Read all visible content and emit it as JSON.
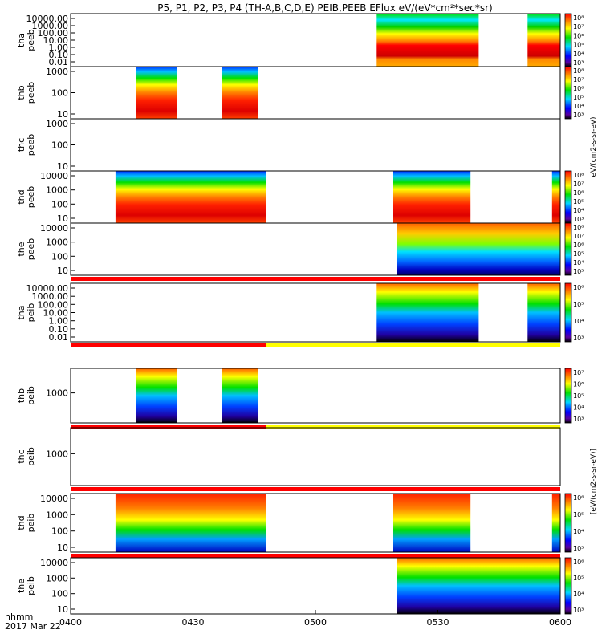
{
  "chart_data": {
    "type": "heatmap",
    "title": "P5, P1, P2, P3, P4 (TH-A,B,C,D,E) PEIB,PEEB EFlux eV/(eV*cm²*sec*sr)",
    "x_axis": {
      "ticks": [
        "0400",
        "0430",
        "0500",
        "0530",
        "0600"
      ],
      "range": [
        "04:00",
        "06:00"
      ],
      "label": "hhmm",
      "date": "2017 Mar 22"
    },
    "colorbar_label_peeb": "eV/(cm2-s-sr-eV)",
    "colorbar_label_peib": "[eV/(cm2-s-sr-eV)]",
    "panels": [
      {
        "probe": "tha",
        "species": "peeb",
        "scale": "log",
        "y_ticks": [
          "10000.00",
          "1000.00",
          "100.00",
          "10.00",
          "1.00",
          "0.10",
          "0.01"
        ],
        "colorbar_ticks": [
          "10⁸",
          "10⁷",
          "10⁶",
          "10⁵",
          "10⁴",
          "10³"
        ],
        "intervals": [
          [
            "05:15",
            "05:40"
          ],
          [
            "05:52",
            "06:00"
          ]
        ],
        "style": "ee_stripes",
        "flag_bar": false
      },
      {
        "probe": "thb",
        "species": "peeb",
        "scale": "log",
        "y_ticks": [
          "1000",
          "100",
          "10"
        ],
        "colorbar_ticks": [
          "10⁸",
          "10⁷",
          "10⁶",
          "10⁵",
          "10⁴",
          "10³"
        ],
        "intervals": [
          [
            "04:16",
            "04:26"
          ],
          [
            "04:37",
            "04:46"
          ]
        ],
        "style": "ee_red",
        "flag_bar": false
      },
      {
        "probe": "thc",
        "species": "peeb",
        "scale": "log",
        "y_ticks": [
          "1000",
          "100",
          "10"
        ],
        "colorbar_ticks": [],
        "intervals": [],
        "style": "none",
        "flag_bar": false
      },
      {
        "probe": "thd",
        "species": "peeb",
        "scale": "log",
        "y_ticks": [
          "10000",
          "1000",
          "100",
          "10"
        ],
        "colorbar_ticks": [
          "10⁸",
          "10⁷",
          "10⁶",
          "10⁵",
          "10⁴",
          "10³"
        ],
        "intervals": [
          [
            "04:11",
            "04:48"
          ],
          [
            "05:19",
            "05:38"
          ],
          [
            "05:58",
            "06:00"
          ]
        ],
        "style": "ee_red",
        "flag_bar": false
      },
      {
        "probe": "the",
        "species": "peeb",
        "scale": "log",
        "y_ticks": [
          "10000",
          "1000",
          "100",
          "10"
        ],
        "colorbar_ticks": [
          "10⁸",
          "10⁷",
          "10⁶",
          "10⁵",
          "10⁴",
          "10³"
        ],
        "intervals": [
          [
            "05:20",
            "06:00"
          ]
        ],
        "style": "ee_mixed",
        "flag_bar": true,
        "flag_segments": [
          {
            "from": "04:00",
            "to": "06:00",
            "color": "#ff0000"
          }
        ]
      },
      {
        "probe": "tha",
        "species": "peib",
        "scale": "log",
        "y_ticks": [
          "10000.00",
          "1000.00",
          "100.00",
          "10.00",
          "1.00",
          "0.10",
          "0.01"
        ],
        "colorbar_ticks": [
          "10⁶",
          "10⁵",
          "10⁴",
          "10³"
        ],
        "intervals": [
          [
            "05:15",
            "05:40"
          ],
          [
            "05:52",
            "06:00"
          ]
        ],
        "style": "ei_mixed",
        "flag_bar": true,
        "flag_segments": [
          {
            "from": "04:00",
            "to": "04:48",
            "color": "#ff0000"
          },
          {
            "from": "04:48",
            "to": "06:00",
            "color": "#ffff00"
          }
        ]
      },
      {
        "probe": "thb",
        "species": "peib",
        "scale": "log",
        "y_ticks": [
          "1000"
        ],
        "colorbar_ticks": [
          "10⁷",
          "10⁶",
          "10⁵",
          "10⁴",
          "10³"
        ],
        "intervals": [
          [
            "04:16",
            "04:26"
          ],
          [
            "04:37",
            "04:46"
          ]
        ],
        "style": "ei_mixed",
        "flag_bar": true,
        "flag_segments": [
          {
            "from": "04:00",
            "to": "04:48",
            "color": "#ff0000"
          },
          {
            "from": "04:48",
            "to": "06:00",
            "color": "#ffff00"
          }
        ]
      },
      {
        "probe": "thc",
        "species": "peib",
        "scale": "log",
        "y_ticks": [
          "1000"
        ],
        "colorbar_ticks": [],
        "intervals": [],
        "style": "none",
        "flag_bar": true,
        "flag_segments": [
          {
            "from": "04:00",
            "to": "06:00",
            "color": "#ff0000"
          }
        ]
      },
      {
        "probe": "thd",
        "species": "peib",
        "scale": "log",
        "y_ticks": [
          "10000",
          "1000",
          "100",
          "10"
        ],
        "colorbar_ticks": [
          "10⁶",
          "10⁵",
          "10⁴",
          "10³"
        ],
        "intervals": [
          [
            "04:11",
            "04:48"
          ],
          [
            "05:19",
            "05:38"
          ],
          [
            "05:58",
            "06:00"
          ]
        ],
        "style": "ei_red",
        "flag_bar": true,
        "flag_segments": [
          {
            "from": "04:00",
            "to": "06:00",
            "color": "#ff0000"
          }
        ]
      },
      {
        "probe": "the",
        "species": "peib",
        "scale": "log",
        "y_ticks": [
          "10000",
          "1000",
          "100",
          "10"
        ],
        "colorbar_ticks": [
          "10⁶",
          "10⁵",
          "10⁴",
          "10³"
        ],
        "intervals": [
          [
            "05:20",
            "06:00"
          ]
        ],
        "style": "ei_mixed",
        "flag_bar": false
      }
    ]
  }
}
